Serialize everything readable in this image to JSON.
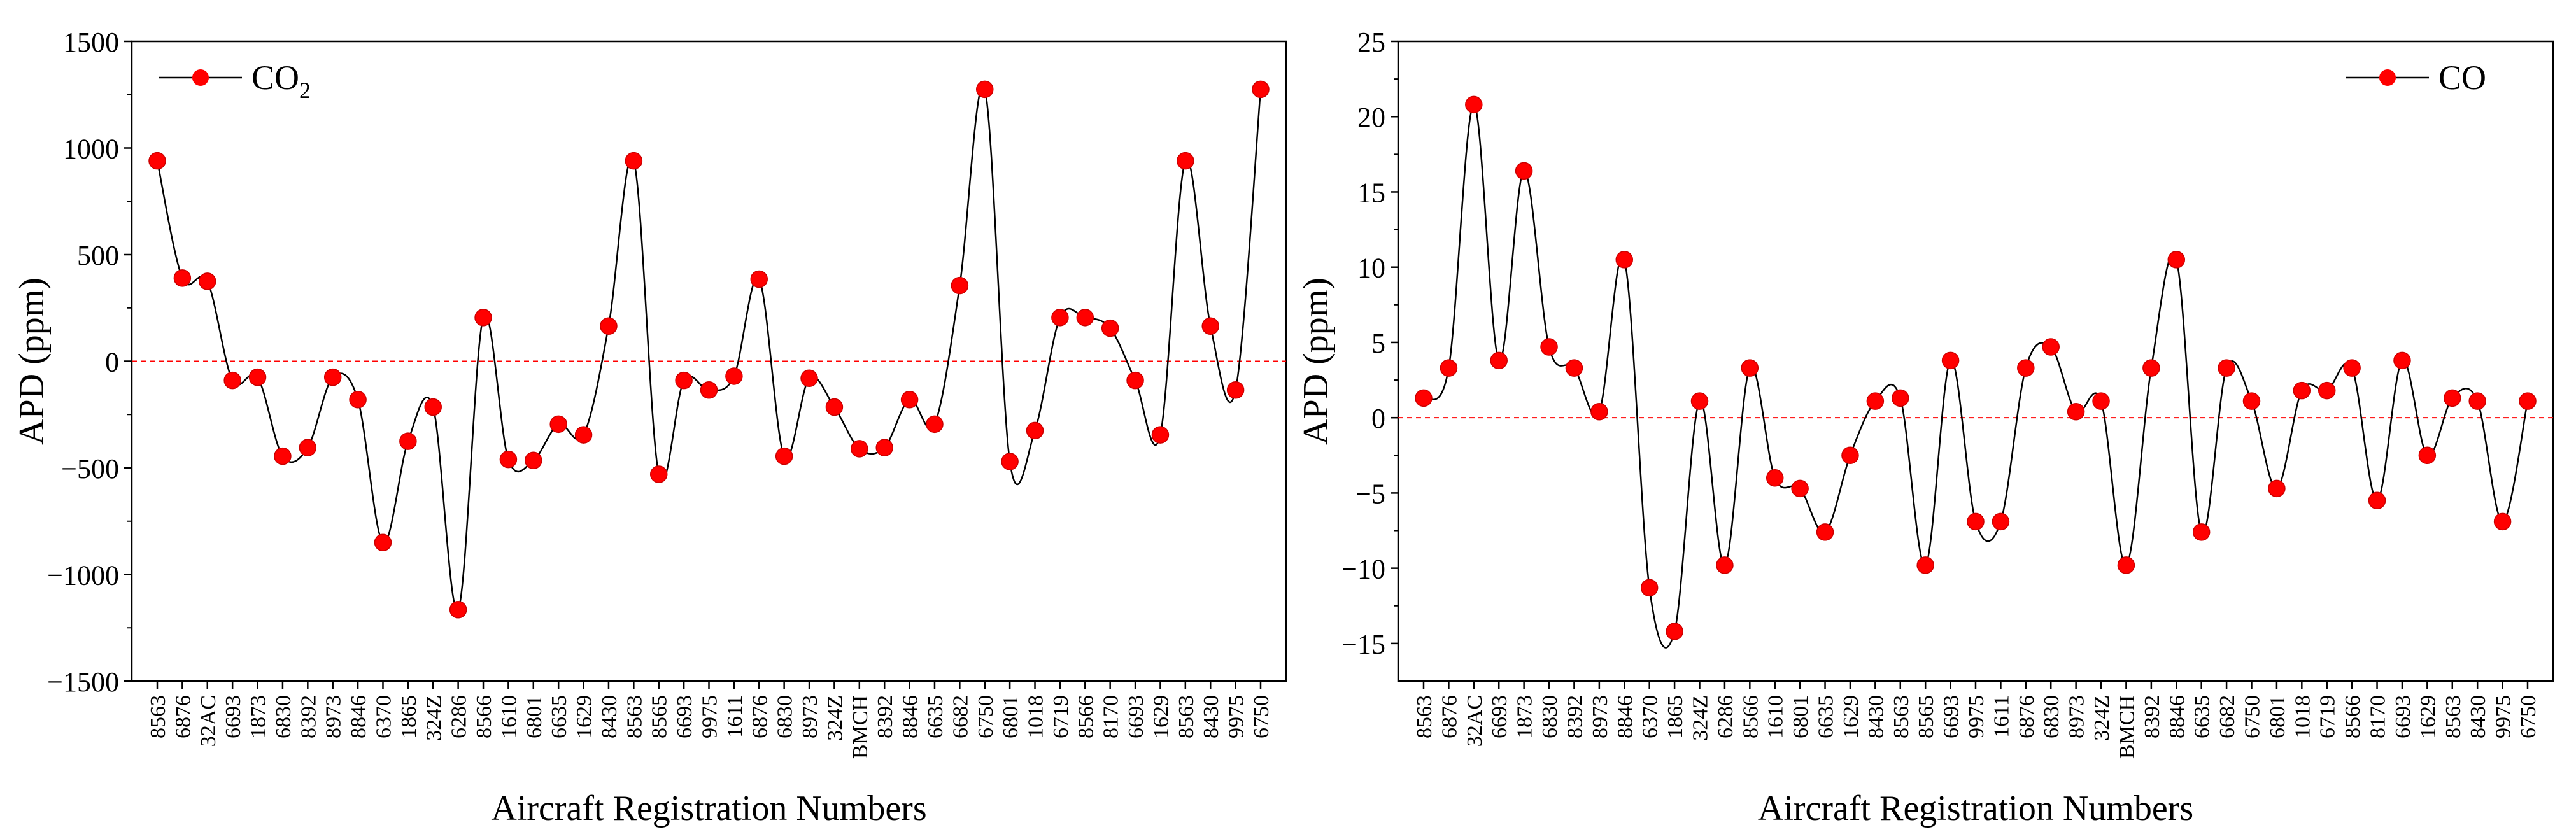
{
  "figure": {
    "background": "#ffffff"
  },
  "chart_data": [
    {
      "type": "line",
      "id": "co2",
      "ylabel": "APD (ppm)",
      "xlabel": "Aircraft Registration Numbers",
      "legend_label": "CO",
      "legend_subscript": "2",
      "legend_position": "top-left",
      "ylim": [
        -1500,
        1500
      ],
      "yticks": [
        -1500,
        -1000,
        -500,
        0,
        500,
        1000,
        1500
      ],
      "ytick_labels": [
        "−1500",
        "−1000",
        "−500",
        "0",
        "500",
        "1000",
        "1500"
      ],
      "reference_line": 0,
      "line_color": "#000000",
      "marker_color": "#ff0000",
      "reference_color": "#ff0000",
      "categories": [
        "8563",
        "6876",
        "32AC",
        "6693",
        "1873",
        "6830",
        "8392",
        "8973",
        "8846",
        "6370",
        "1865",
        "324Z",
        "6286",
        "8566",
        "1610",
        "6801",
        "6635",
        "1629",
        "8430",
        "8563",
        "8565",
        "6693",
        "9975",
        "1611",
        "6876",
        "6830",
        "8973",
        "324Z",
        "BMCH",
        "8392",
        "8846",
        "6635",
        "6682",
        "6750",
        "6801",
        "1018",
        "6719",
        "8566",
        "8170",
        "6693",
        "1629",
        "8563",
        "8430",
        "9975",
        "6750"
      ],
      "values": [
        940,
        390,
        375,
        -90,
        -75,
        -445,
        -405,
        -75,
        -180,
        -850,
        -375,
        -215,
        -1165,
        205,
        -460,
        -465,
        -295,
        -345,
        165,
        940,
        -530,
        -90,
        -135,
        -70,
        385,
        -445,
        -80,
        -215,
        -410,
        -405,
        -180,
        -295,
        355,
        1275,
        -470,
        -325,
        205,
        205,
        155,
        -90,
        -345,
        940,
        165,
        -135,
        1275
      ]
    },
    {
      "type": "line",
      "id": "co",
      "ylabel": "APD (ppm)",
      "xlabel": "Aircraft Registration Numbers",
      "legend_label": "CO",
      "legend_subscript": "",
      "legend_position": "top-right",
      "ylim": [
        -17.5,
        25
      ],
      "yticks": [
        -15,
        -10,
        -5,
        0,
        5,
        10,
        15,
        20,
        25
      ],
      "ytick_labels": [
        "−15",
        "−10",
        "−5",
        "0",
        "5",
        "10",
        "15",
        "20",
        "25"
      ],
      "reference_line": 0,
      "line_color": "#000000",
      "marker_color": "#ff0000",
      "reference_color": "#ff0000",
      "categories": [
        "8563",
        "6876",
        "32AC",
        "6693",
        "1873",
        "6830",
        "8392",
        "8973",
        "8846",
        "6370",
        "1865",
        "324Z",
        "6286",
        "8566",
        "1610",
        "6801",
        "6635",
        "1629",
        "8430",
        "8563",
        "8565",
        "6693",
        "9975",
        "1611",
        "6876",
        "6830",
        "8973",
        "324Z",
        "BMCH",
        "8392",
        "8846",
        "6635",
        "6682",
        "6750",
        "6801",
        "1018",
        "6719",
        "8566",
        "8170",
        "6693",
        "1629",
        "8563",
        "8430",
        "9975",
        "6750"
      ],
      "values": [
        1.3,
        3.3,
        20.8,
        3.8,
        16.4,
        4.7,
        3.3,
        0.4,
        10.5,
        -11.3,
        -14.2,
        1.1,
        -9.8,
        3.3,
        -4.0,
        -4.7,
        -7.6,
        -2.5,
        1.1,
        1.3,
        -9.8,
        3.8,
        -6.9,
        -6.9,
        3.3,
        4.7,
        0.4,
        1.1,
        -9.8,
        3.3,
        10.5,
        -7.6,
        3.3,
        1.1,
        -4.7,
        1.8,
        1.8,
        3.3,
        -5.5,
        3.8,
        -2.5,
        1.3,
        1.1,
        -6.9,
        1.1
      ]
    }
  ]
}
